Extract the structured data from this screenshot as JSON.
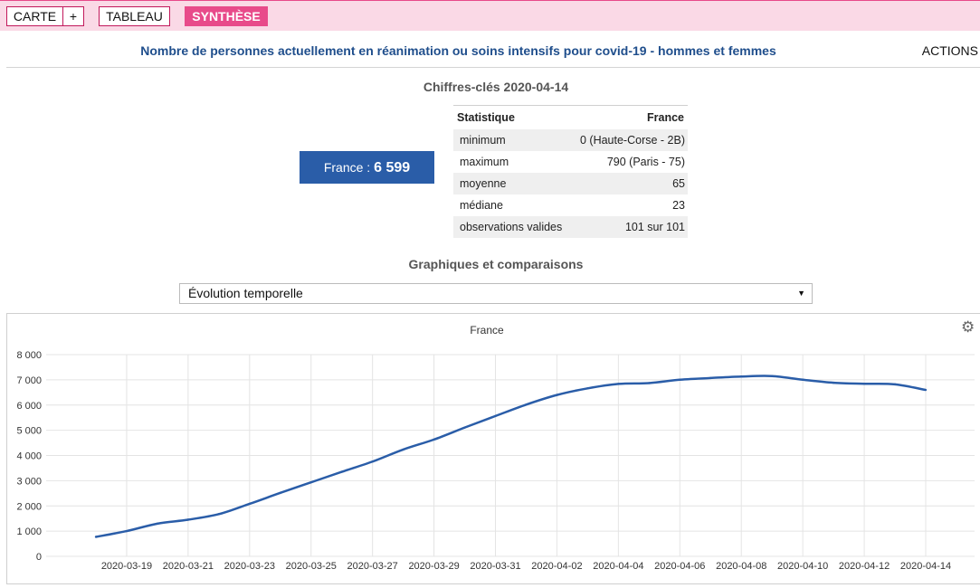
{
  "toolbar": {
    "carte_label": "CARTE",
    "plus_label": "+",
    "tableau_label": "TABLEAU",
    "synthese_label": "SYNTHÈSE"
  },
  "header": {
    "title": "Nombre de personnes actuellement en réanimation ou soins intensifs pour covid-19 - hommes et femmes",
    "actions_label": "ACTIONS"
  },
  "keyfigures": {
    "title": "Chiffres-clés 2020-04-14",
    "france_label": "France : ",
    "france_value": "6 599",
    "table": {
      "col_stat": "Statistique",
      "col_france": "France",
      "rows": [
        {
          "label": "minimum",
          "value": "0 (Haute-Corse - 2B)"
        },
        {
          "label": "maximum",
          "value": "790 (Paris - 75)"
        },
        {
          "label": "moyenne",
          "value": "65"
        },
        {
          "label": "médiane",
          "value": "23"
        },
        {
          "label": "observations valides",
          "value": "101 sur 101"
        }
      ]
    }
  },
  "graphs": {
    "title": "Graphiques et comparaisons",
    "select_value": "Évolution temporelle"
  },
  "chart_data": {
    "type": "line",
    "title": "France",
    "x": [
      "2020-03-18",
      "2020-03-19",
      "2020-03-20",
      "2020-03-21",
      "2020-03-22",
      "2020-03-23",
      "2020-03-24",
      "2020-03-25",
      "2020-03-26",
      "2020-03-27",
      "2020-03-28",
      "2020-03-29",
      "2020-03-30",
      "2020-03-31",
      "2020-04-01",
      "2020-04-02",
      "2020-04-03",
      "2020-04-04",
      "2020-04-05",
      "2020-04-06",
      "2020-04-07",
      "2020-04-08",
      "2020-04-09",
      "2020-04-10",
      "2020-04-11",
      "2020-04-12",
      "2020-04-13",
      "2020-04-14"
    ],
    "series": [
      {
        "values": [
          771,
          1002,
          1297,
          1453,
          1674,
          2082,
          2516,
          2935,
          3351,
          3758,
          4236,
          4632,
          5107,
          5565,
          6017,
          6399,
          6662,
          6838,
          6872,
          7004,
          7072,
          7131,
          7148,
          7004,
          6883,
          6845,
          6821,
          6599
        ],
        "color": "#2a5da8"
      }
    ],
    "xticks": [
      "2020-03-19",
      "2020-03-21",
      "2020-03-23",
      "2020-03-25",
      "2020-03-27",
      "2020-03-29",
      "2020-03-31",
      "2020-04-02",
      "2020-04-04",
      "2020-04-06",
      "2020-04-08",
      "2020-04-10",
      "2020-04-12",
      "2020-04-14"
    ],
    "yticks": [
      0,
      1000,
      2000,
      3000,
      4000,
      5000,
      6000,
      7000,
      8000
    ],
    "ytick_labels": [
      "0",
      "1 000",
      "2 000",
      "3 000",
      "4 000",
      "5 000",
      "6 000",
      "7 000",
      "8 000"
    ],
    "ylim": [
      0,
      8000
    ],
    "grid": true,
    "legend": "none"
  }
}
